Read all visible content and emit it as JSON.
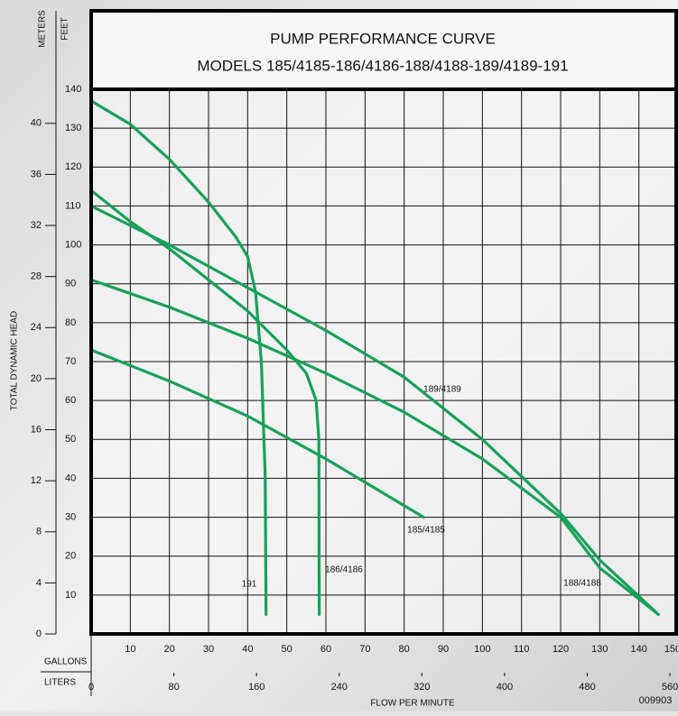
{
  "chart_data": {
    "type": "line",
    "title": "PUMP PERFORMANCE CURVE",
    "subtitle": "MODELS 185/4185-186/4186-188/4188-189/4189-191",
    "y_label": "TOTAL DYNAMIC HEAD",
    "y_unit": "FEET",
    "y2_unit": "METERS",
    "x_unit": "GALLONS",
    "x2_unit": "LITERS",
    "x_label": "FLOW PER MINUTE",
    "code": "009903",
    "xlim": [
      0,
      150
    ],
    "xticks": [
      10,
      20,
      30,
      40,
      50,
      60,
      70,
      80,
      90,
      100,
      110,
      120,
      130,
      140,
      150
    ],
    "x2lim": [
      0,
      567.8
    ],
    "x2ticks": [
      0,
      80,
      160,
      240,
      320,
      400,
      480,
      560
    ],
    "ylim": [
      0,
      140
    ],
    "yticks": [
      10,
      20,
      30,
      40,
      50,
      60,
      70,
      80,
      90,
      100,
      110,
      120,
      130,
      140
    ],
    "y2lim": [
      0,
      42.67
    ],
    "y2ticks": [
      0,
      4,
      8,
      12,
      16,
      20,
      24,
      28,
      32,
      36,
      40
    ],
    "grid": true,
    "series": [
      {
        "name": "191",
        "color": "#17a05a",
        "x": [
          0,
          10,
          20,
          30,
          37,
          40,
          42,
          43.5,
          44.5,
          44.7
        ],
        "values": [
          137,
          131,
          122,
          111,
          102,
          97,
          88,
          70,
          40,
          5
        ]
      },
      {
        "name": "186/4186",
        "color": "#17a05a",
        "x": [
          0,
          10,
          20,
          30,
          40,
          50,
          55,
          57.5,
          58.2,
          58.3
        ],
        "values": [
          114,
          106,
          99,
          91,
          83,
          73,
          67,
          60,
          50,
          5
        ]
      },
      {
        "name": "189/4189",
        "color": "#17a05a",
        "x": [
          0,
          20,
          40,
          60,
          80,
          100,
          120,
          130,
          145
        ],
        "values": [
          110,
          100,
          89,
          78,
          66,
          50,
          31,
          19,
          5
        ]
      },
      {
        "name": "188/4188",
        "color": "#17a05a",
        "x": [
          0,
          20,
          40,
          60,
          80,
          100,
          120,
          130,
          145
        ],
        "values": [
          91,
          84,
          76,
          67,
          57,
          45,
          30,
          17,
          5
        ]
      },
      {
        "name": "185/4185",
        "color": "#17a05a",
        "x": [
          0,
          20,
          40,
          60,
          70,
          85
        ],
        "values": [
          73,
          65,
          56,
          45,
          39,
          30
        ]
      }
    ]
  }
}
